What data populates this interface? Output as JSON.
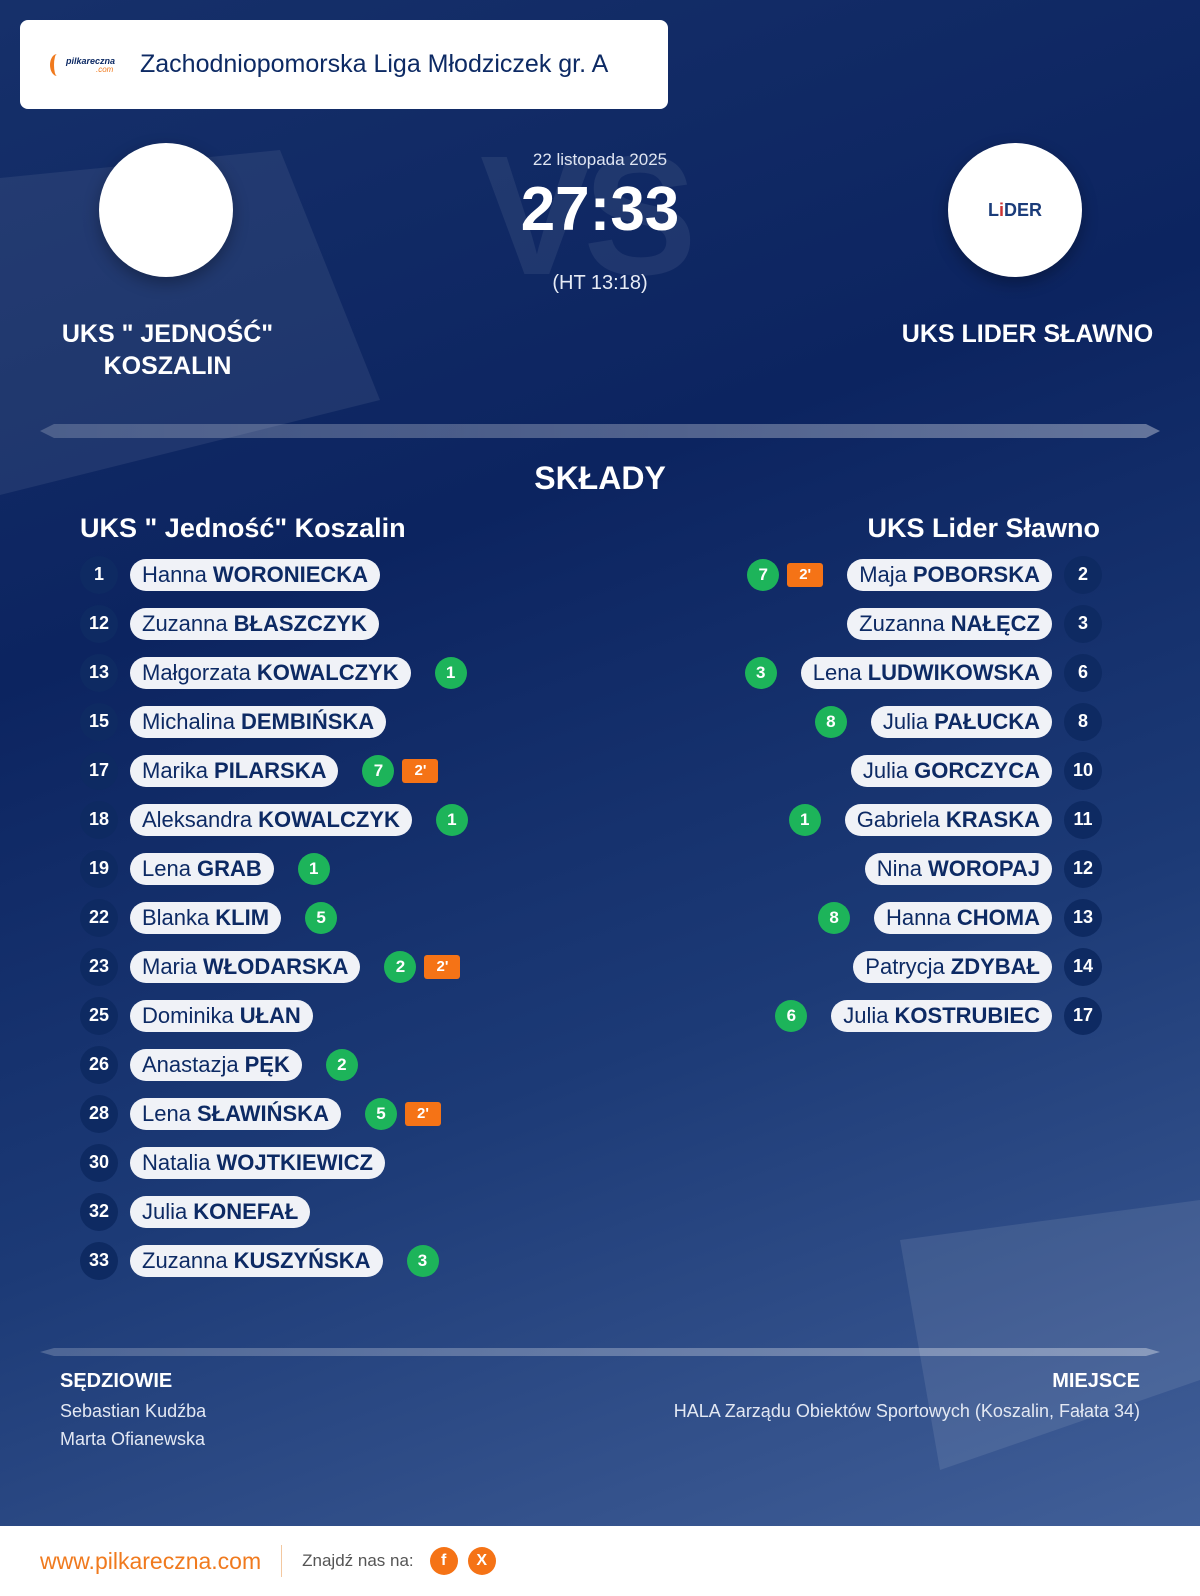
{
  "header": {
    "league": "Zachodniopomorska Liga Młodziczek gr. A",
    "logo_text": "pilkareczna.com"
  },
  "match": {
    "vs": "VS",
    "date": "22 listopada 2025",
    "score": "27:33",
    "halftime": "(HT 13:18)",
    "home": {
      "name": "UKS \" JEDNOŚĆ\" KOSZALIN",
      "name_short": "UKS \" Jedność\" Koszalin"
    },
    "away": {
      "name": "UKS LIDER SŁAWNO",
      "name_short": "UKS Lider Sławno",
      "logo_text": "LIDER"
    }
  },
  "lineups_title": "SKŁADY",
  "colors": {
    "goal": "#1db45a",
    "penalty": "#f57316",
    "brand": "#f07a1e",
    "navy": "#0d2a64"
  },
  "home_players": [
    {
      "num": "1",
      "first": "Hanna",
      "last": "WORONIECKA",
      "goals": "",
      "pen": ""
    },
    {
      "num": "12",
      "first": "Zuzanna",
      "last": "BŁASZCZYK",
      "goals": "",
      "pen": ""
    },
    {
      "num": "13",
      "first": "Małgorzata",
      "last": "KOWALCZYK",
      "goals": "1",
      "pen": ""
    },
    {
      "num": "15",
      "first": "Michalina",
      "last": "DEMBIŃSKA",
      "goals": "",
      "pen": ""
    },
    {
      "num": "17",
      "first": "Marika",
      "last": "PILARSKA",
      "goals": "7",
      "pen": "2'"
    },
    {
      "num": "18",
      "first": "Aleksandra",
      "last": "KOWALCZYK",
      "goals": "1",
      "pen": ""
    },
    {
      "num": "19",
      "first": "Lena",
      "last": "GRAB",
      "goals": "1",
      "pen": ""
    },
    {
      "num": "22",
      "first": "Blanka",
      "last": "KLIM",
      "goals": "5",
      "pen": ""
    },
    {
      "num": "23",
      "first": "Maria",
      "last": "WŁODARSKA",
      "goals": "2",
      "pen": "2'"
    },
    {
      "num": "25",
      "first": "Dominika",
      "last": "UŁAN",
      "goals": "",
      "pen": ""
    },
    {
      "num": "26",
      "first": "Anastazja",
      "last": "PĘK",
      "goals": "2",
      "pen": ""
    },
    {
      "num": "28",
      "first": "Lena",
      "last": "SŁAWIŃSKA",
      "goals": "5",
      "pen": "2'"
    },
    {
      "num": "30",
      "first": "Natalia",
      "last": "WOJTKIEWICZ",
      "goals": "",
      "pen": ""
    },
    {
      "num": "32",
      "first": "Julia",
      "last": "KONEFAŁ",
      "goals": "",
      "pen": ""
    },
    {
      "num": "33",
      "first": "Zuzanna",
      "last": "KUSZYŃSKA",
      "goals": "3",
      "pen": ""
    }
  ],
  "away_players": [
    {
      "num": "2",
      "first": "Maja",
      "last": "POBORSKA",
      "goals": "7",
      "pen": "2'"
    },
    {
      "num": "3",
      "first": "Zuzanna",
      "last": "NAŁĘCZ",
      "goals": "",
      "pen": ""
    },
    {
      "num": "6",
      "first": "Lena",
      "last": "LUDWIKOWSKA",
      "goals": "3",
      "pen": ""
    },
    {
      "num": "8",
      "first": "Julia",
      "last": "PAŁUCKA",
      "goals": "8",
      "pen": ""
    },
    {
      "num": "10",
      "first": "Julia",
      "last": "GORCZYCA",
      "goals": "",
      "pen": ""
    },
    {
      "num": "11",
      "first": "Gabriela",
      "last": "KRASKA",
      "goals": "1",
      "pen": ""
    },
    {
      "num": "12",
      "first": "Nina",
      "last": "WOROPAJ",
      "goals": "",
      "pen": ""
    },
    {
      "num": "13",
      "first": "Hanna",
      "last": "CHOMA",
      "goals": "8",
      "pen": ""
    },
    {
      "num": "14",
      "first": "Patrycja",
      "last": "ZDYBAŁ",
      "goals": "",
      "pen": ""
    },
    {
      "num": "17",
      "first": "Julia",
      "last": "KOSTRUBIEC",
      "goals": "6",
      "pen": ""
    }
  ],
  "officials": {
    "title": "SĘDZIOWIE",
    "names": [
      "Sebastian Kudźba",
      "Marta Ofianewska"
    ]
  },
  "venue": {
    "title": "MIEJSCE",
    "name": "HALA Zarządu Obiektów Sportowych (Koszalin, Fałata 34)"
  },
  "footer": {
    "site": "www.pilkareczna.com",
    "find_us": "Znajdź nas na:",
    "facebook": "f",
    "x": "X"
  }
}
